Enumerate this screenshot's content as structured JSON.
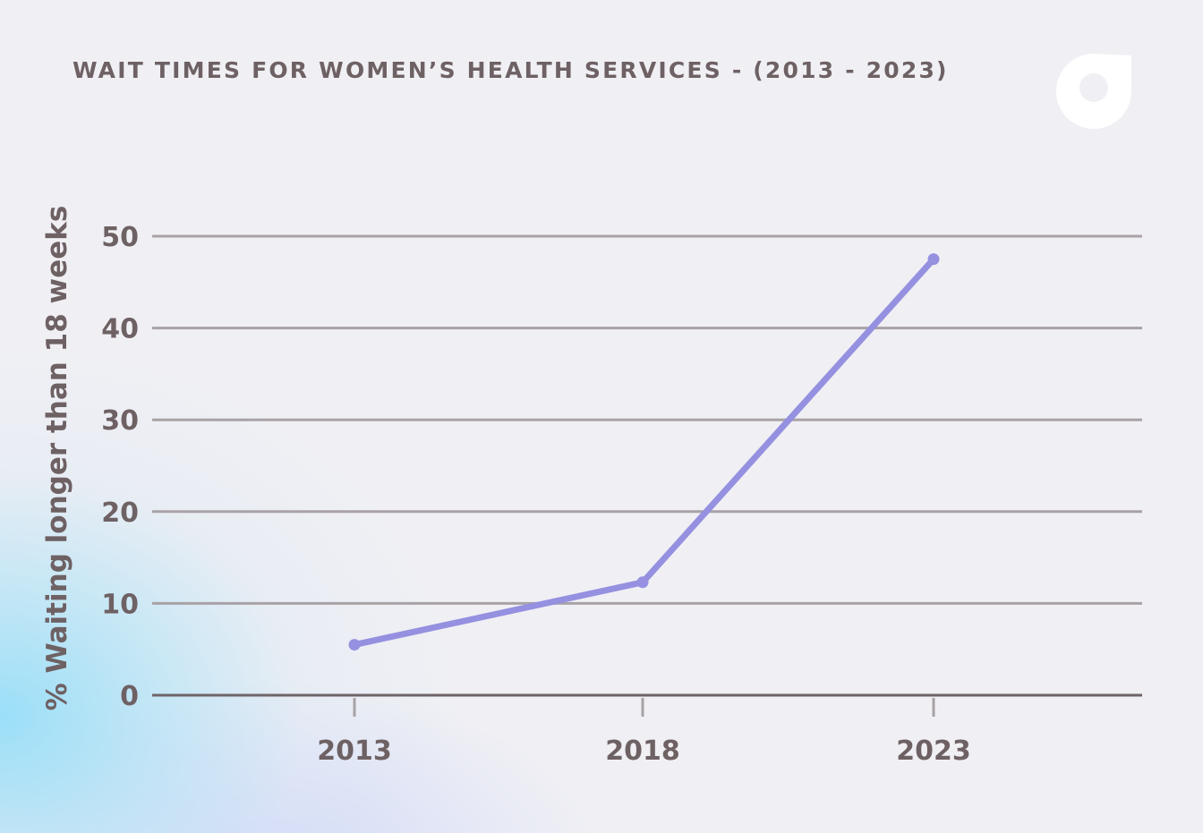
{
  "chart_data": {
    "type": "line",
    "title": "WAIT TIMES FOR WOMEN’S HEALTH SERVICES - (2013 - 2023)",
    "xlabel": "",
    "ylabel": "% Waiting longer than 18 weeks",
    "categories": [
      "2013",
      "2018",
      "2023"
    ],
    "series": [
      {
        "values": [
          5.5,
          12.3,
          47.5
        ]
      }
    ],
    "ylim": [
      0,
      50
    ],
    "yticks": [
      0,
      10,
      20,
      30,
      40,
      50
    ],
    "grid": true,
    "legend": "none"
  },
  "colors": {
    "line": "#9590e0",
    "grid": "#a8a2a6",
    "axis": "#6e6468",
    "text": "#6e6164",
    "logo": "#ffffff"
  },
  "logo": {
    "icon": "brand-logo-icon"
  }
}
